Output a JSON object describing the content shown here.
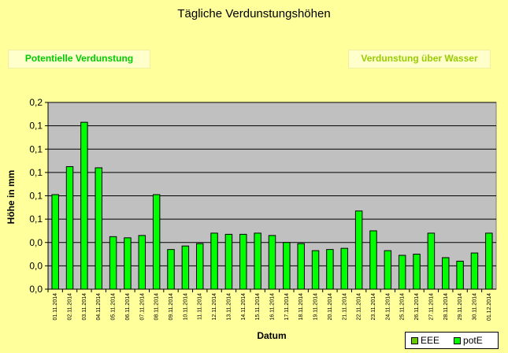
{
  "header": {
    "title": "Tägliche Verdunstungshöhen",
    "tab_left": "Potentielle Verdunstung",
    "tab_right": "Verdunstung über Wasser"
  },
  "colors": {
    "plot_bg": "#c0c0c0",
    "bar_fill": "#00ff00",
    "eee_swatch": "#66cc00",
    "page_bg": "#ffff9c"
  },
  "chart_data": {
    "type": "bar",
    "title": "Tägliche Verdunstungshöhen",
    "xlabel": "Datum",
    "ylabel": "Höhe in mm",
    "ylim": [
      0,
      0.16
    ],
    "yticks": [
      0.0,
      0.02,
      0.04,
      0.06,
      0.08,
      0.1,
      0.12,
      0.14,
      0.16
    ],
    "ytick_labels": [
      "0,0",
      "0,0",
      "0,0",
      "0,1",
      "0,1",
      "0,1",
      "0,1",
      "0,1",
      "0,2"
    ],
    "grid": true,
    "legend_position": "bottom-right",
    "categories": [
      "01.11.2014",
      "02.11.2014",
      "03.11.2014",
      "04.11.2014",
      "05.11.2014",
      "06.11.2014",
      "07.11.2014",
      "08.11.2014",
      "09.11.2014",
      "10.11.2014",
      "11.11.2014",
      "12.11.2014",
      "13.11.2014",
      "14.11.2014",
      "15.11.2014",
      "16.11.2014",
      "17.11.2014",
      "18.11.2014",
      "19.11.2014",
      "20.11.2014",
      "21.11.2014",
      "22.11.2014",
      "23.11.2014",
      "24.11.2014",
      "25.11.2014",
      "26.11.2014",
      "27.11.2014",
      "28.11.2014",
      "29.11.2014",
      "30.11.2014",
      "01.12.2014"
    ],
    "series": [
      {
        "name": "EEE",
        "values": [
          null,
          null,
          null,
          null,
          null,
          null,
          null,
          null,
          null,
          null,
          null,
          null,
          null,
          null,
          null,
          null,
          null,
          null,
          null,
          null,
          null,
          null,
          null,
          null,
          null,
          null,
          null,
          null,
          null,
          null,
          null
        ]
      },
      {
        "name": "potE",
        "values": [
          0.081,
          0.105,
          0.143,
          0.104,
          0.045,
          0.044,
          0.046,
          0.081,
          0.034,
          0.037,
          0.039,
          0.048,
          0.047,
          0.047,
          0.048,
          0.046,
          0.04,
          0.039,
          0.033,
          0.034,
          0.035,
          0.067,
          0.05,
          0.033,
          0.029,
          0.03,
          0.048,
          0.027,
          0.024,
          0.031,
          0.048
        ]
      }
    ]
  },
  "legend": {
    "items": [
      {
        "label": "EEE"
      },
      {
        "label": "potE"
      }
    ]
  }
}
